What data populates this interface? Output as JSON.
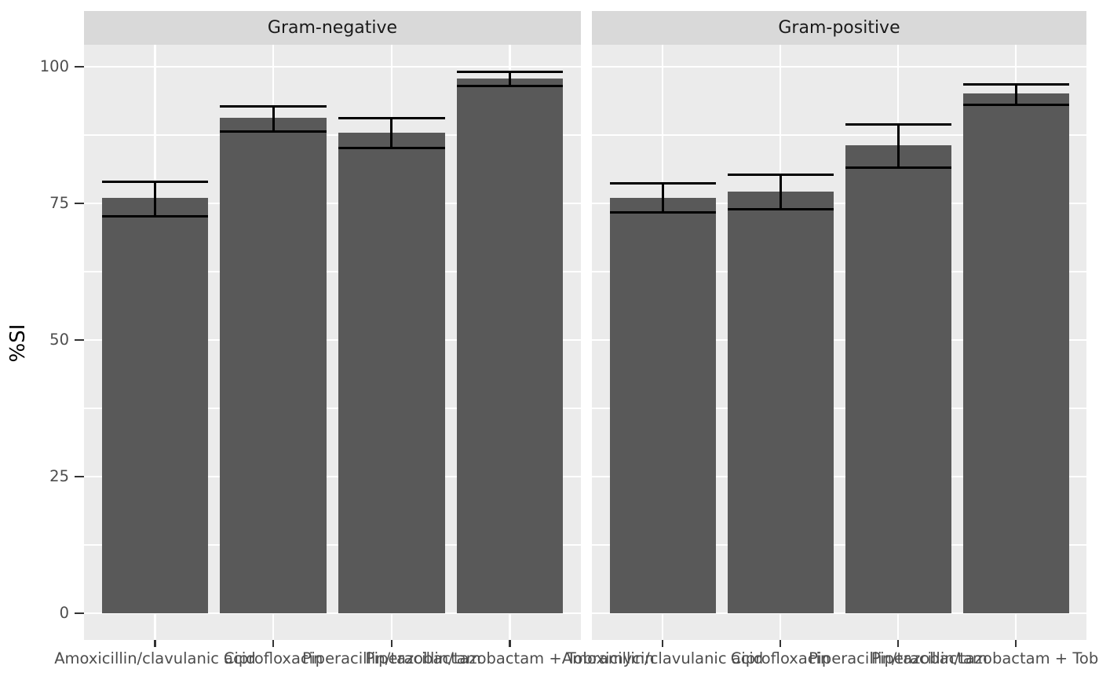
{
  "chart_data": {
    "type": "bar",
    "title": "",
    "ylabel": "%SI",
    "xlabel": "",
    "ylim": [
      0,
      100
    ],
    "yticks": [
      0,
      25,
      50,
      75,
      100
    ],
    "ytick_labels": [
      "0",
      "25",
      "50",
      "75",
      "100"
    ],
    "yticks_minor": [
      12.5,
      37.5,
      62.5,
      87.5
    ],
    "grid": true,
    "legend_position": "none",
    "categories": [
      "Amoxicillin/clavulanic acid",
      "Ciprofloxacin",
      "Piperacillin/tazobactam",
      "Piperacillin/tazobactam + Tobramycin"
    ],
    "facets": [
      {
        "label": "Gram-negative",
        "values": [
          76.0,
          90.7,
          87.9,
          97.8
        ],
        "error_low": [
          72.7,
          88.2,
          85.2,
          96.5
        ],
        "error_high": [
          79.0,
          92.8,
          90.6,
          99.0
        ]
      },
      {
        "label": "Gram-positive",
        "values": [
          76.0,
          77.2,
          85.6,
          95.1
        ],
        "error_low": [
          73.4,
          73.9,
          81.6,
          93.0
        ],
        "error_high": [
          78.6,
          80.3,
          89.4,
          96.8
        ]
      }
    ],
    "colors": {
      "bar_fill": "#595959",
      "panel_bg": "#EBEBEB",
      "strip_bg": "#D9D9D9",
      "grid": "#FFFFFF",
      "errorbar": "#000000",
      "axis_text": "#4D4D4D",
      "strip_text": "#1A1A1A",
      "tick_mark": "#333333",
      "y_title": "#000000",
      "background": "#FFFFFF"
    }
  }
}
